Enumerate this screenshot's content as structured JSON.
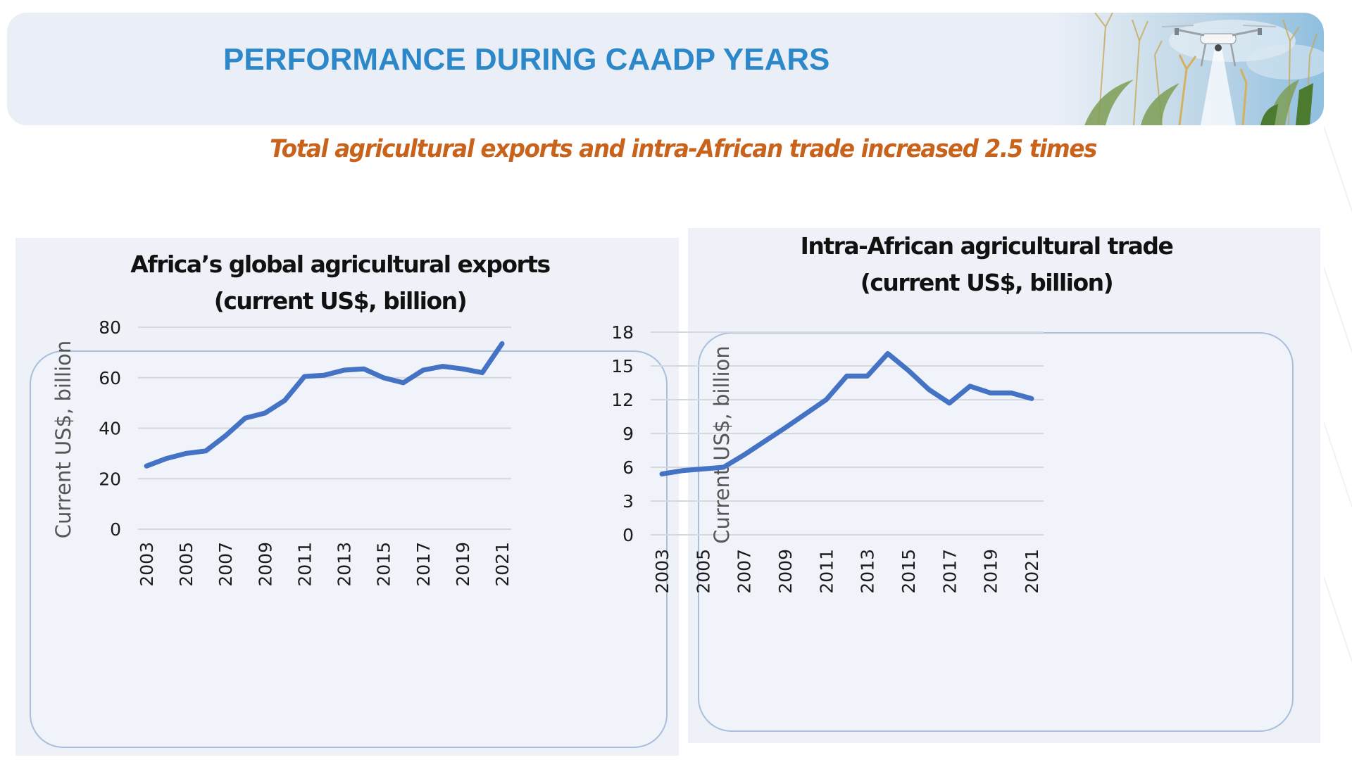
{
  "header": {
    "title": "PERFORMANCE DURING CAADP YEARS",
    "image": "drone-over-maize-field-photo"
  },
  "subtitle": "Total agricultural exports and intra-African trade increased 2.5 times",
  "colors": {
    "title": "#2c88c9",
    "subtitle": "#c9631c",
    "series": "#4472c4",
    "header_band": "#e9eef7"
  },
  "chart_data": [
    {
      "type": "line",
      "title": [
        "Africa’s global agricultural exports",
        "(current US$, billion)"
      ],
      "xlabel": "",
      "ylabel": "Current US$, billion",
      "x": [
        2003,
        2004,
        2005,
        2006,
        2007,
        2008,
        2009,
        2010,
        2011,
        2012,
        2013,
        2014,
        2015,
        2016,
        2017,
        2018,
        2019,
        2020,
        2021
      ],
      "x_tick_labels": [
        "2003",
        "2005",
        "2007",
        "2009",
        "2011",
        "2013",
        "2015",
        "2017",
        "2019",
        "2021"
      ],
      "y_ticks": [
        0,
        20,
        40,
        60,
        80
      ],
      "ylim": [
        0,
        80
      ],
      "grid": true,
      "legend": "none",
      "series": [
        {
          "name": "Africa's global agricultural exports",
          "values": [
            25,
            28,
            30,
            31,
            37,
            44,
            46,
            51,
            60.5,
            61,
            63,
            63.5,
            60,
            58,
            63,
            64.5,
            63.5,
            62,
            73.5
          ]
        }
      ]
    },
    {
      "type": "line",
      "title": [
        "Intra-African agricultural trade",
        "(current US$, billion)"
      ],
      "xlabel": "",
      "ylabel": "Current US$, billion",
      "x": [
        2003,
        2004,
        2005,
        2006,
        2007,
        2008,
        2009,
        2010,
        2011,
        2012,
        2013,
        2014,
        2015,
        2016,
        2017,
        2018,
        2019,
        2020,
        2021
      ],
      "x_tick_labels": [
        "2003",
        "2005",
        "2007",
        "2009",
        "2011",
        "2013",
        "2015",
        "2017",
        "2019",
        "2021"
      ],
      "y_ticks": [
        0,
        3,
        6,
        9,
        12,
        15,
        18
      ],
      "ylim": [
        0,
        18
      ],
      "grid": true,
      "legend": "none",
      "series": [
        {
          "name": "Intra-African agricultural trade",
          "values": [
            5.4,
            5.7,
            5.85,
            6.0,
            7.1,
            8.3,
            9.5,
            10.75,
            12.0,
            14.1,
            14.1,
            16.1,
            14.6,
            12.9,
            11.7,
            13.2,
            12.6,
            12.6,
            12.1
          ]
        }
      ]
    }
  ]
}
